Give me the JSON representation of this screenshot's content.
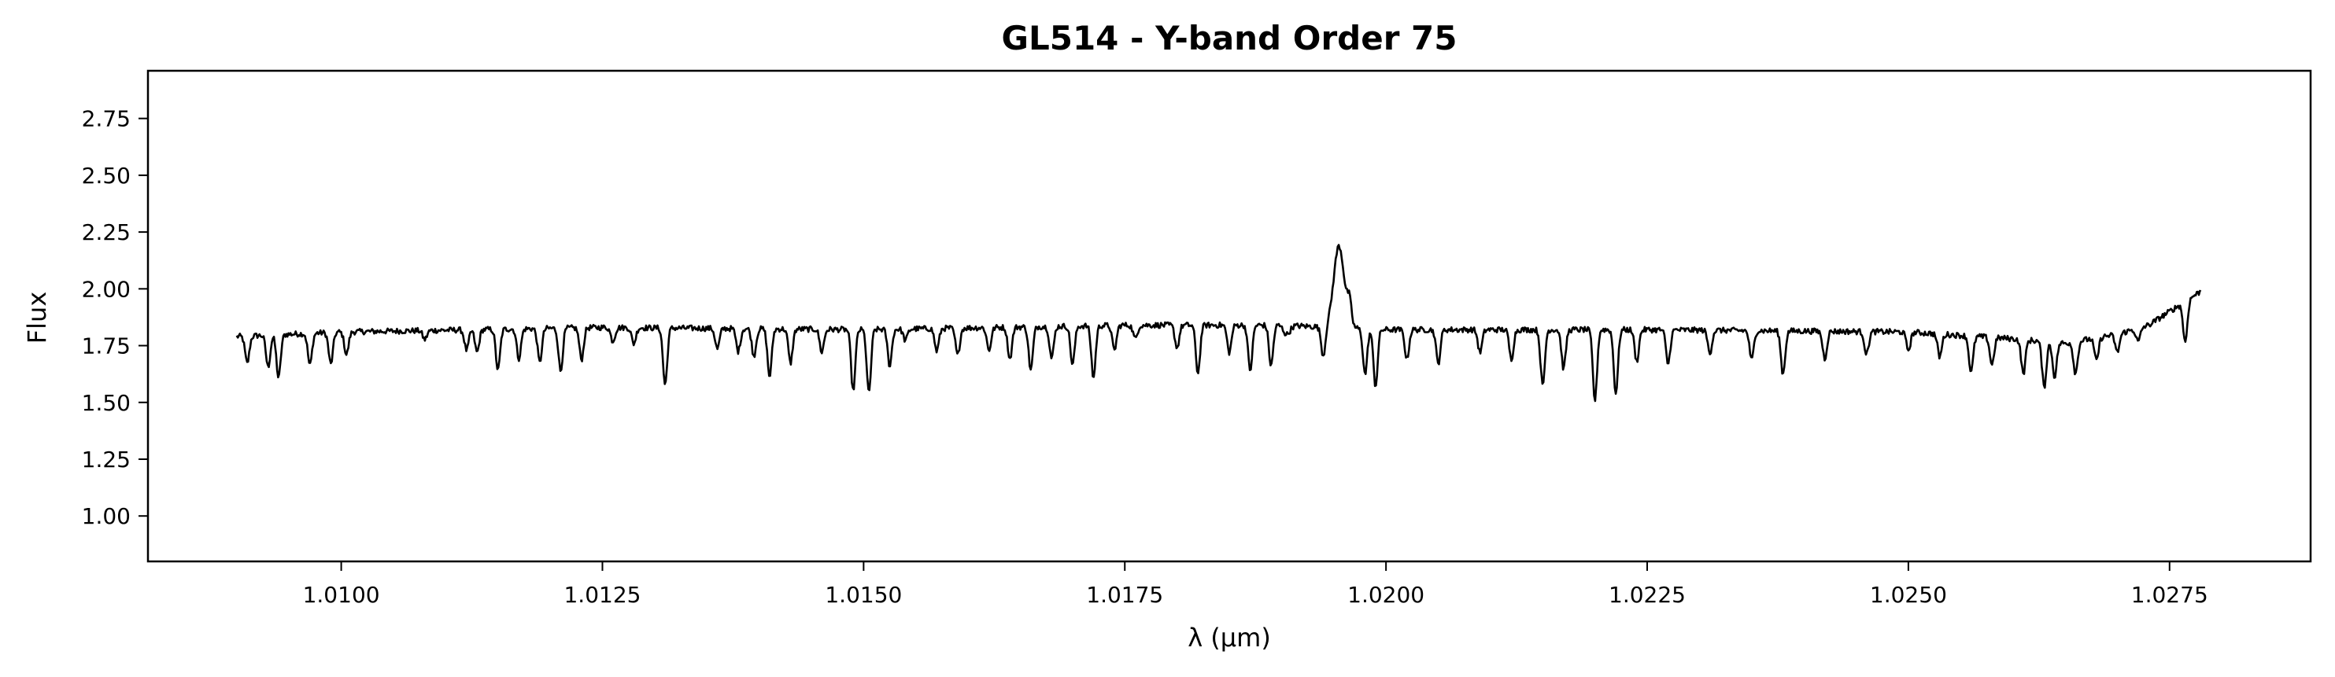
{
  "chart_data": {
    "type": "line",
    "title": "GL514 - Y-band Order 75",
    "xlabel": "λ (μm)",
    "ylabel": "Flux",
    "xlim": [
      1.00815,
      1.02885
    ],
    "ylim": [
      0.8,
      2.96
    ],
    "x_ticks": [
      1.01,
      1.0125,
      1.015,
      1.0175,
      1.02,
      1.0225,
      1.025,
      1.0275
    ],
    "x_tick_labels": [
      "1.0100",
      "1.0125",
      "1.0150",
      "1.0175",
      "1.0200",
      "1.0225",
      "1.0250",
      "1.0275"
    ],
    "y_ticks": [
      1.0,
      1.25,
      1.5,
      1.75,
      2.0,
      2.25,
      2.5,
      2.75
    ],
    "y_tick_labels": [
      "1.00",
      "1.25",
      "1.50",
      "1.75",
      "2.00",
      "2.25",
      "2.50",
      "2.75"
    ],
    "grid": false,
    "legend": "none",
    "series": [
      {
        "color": "#000000",
        "continuum": [
          [
            1.009,
            1.79
          ],
          [
            1.01,
            1.81
          ],
          [
            1.0125,
            1.83
          ],
          [
            1.015,
            1.82
          ],
          [
            1.0175,
            1.84
          ],
          [
            1.019,
            1.84
          ],
          [
            1.02,
            1.82
          ],
          [
            1.0225,
            1.82
          ],
          [
            1.025,
            1.81
          ],
          [
            1.026,
            1.78
          ],
          [
            1.0265,
            1.76
          ],
          [
            1.027,
            1.8
          ],
          [
            1.0273,
            1.84
          ],
          [
            1.0275,
            1.9
          ],
          [
            1.0278,
            1.99
          ]
        ],
        "features": [
          [
            1.01905,
            -0.04,
            3e-05
          ],
          [
            1.01955,
            0.36,
            5e-05
          ],
          [
            1.01965,
            0.1,
            2e-05
          ],
          [
            1.0091,
            -0.12,
            2e-05
          ],
          [
            1.0093,
            -0.14,
            2e-05
          ],
          [
            1.0094,
            -0.19,
            2e-05
          ],
          [
            1.0097,
            -0.14,
            2e-05
          ],
          [
            1.0099,
            -0.14,
            2e-05
          ],
          [
            1.01005,
            -0.1,
            2e-05
          ],
          [
            1.0108,
            -0.04,
            2e-05
          ],
          [
            1.0112,
            -0.09,
            2e-05
          ],
          [
            1.0113,
            -0.1,
            2e-05
          ],
          [
            1.0115,
            -0.18,
            2e-05
          ],
          [
            1.0117,
            -0.13,
            2e-05
          ],
          [
            1.0119,
            -0.15,
            2e-05
          ],
          [
            1.0121,
            -0.19,
            2e-05
          ],
          [
            1.0123,
            -0.14,
            2e-05
          ],
          [
            1.0126,
            -0.06,
            2e-05
          ],
          [
            1.0128,
            -0.07,
            2e-05
          ],
          [
            1.0131,
            -0.25,
            2e-05
          ],
          [
            1.0136,
            -0.09,
            2e-05
          ],
          [
            1.0138,
            -0.1,
            2e-05
          ],
          [
            1.01395,
            -0.12,
            2e-05
          ],
          [
            1.0141,
            -0.21,
            2e-05
          ],
          [
            1.0143,
            -0.15,
            2e-05
          ],
          [
            1.0146,
            -0.1,
            2e-05
          ],
          [
            1.0149,
            -0.27,
            2e-05
          ],
          [
            1.01505,
            -0.28,
            2e-05
          ],
          [
            1.01525,
            -0.16,
            2e-05
          ],
          [
            1.0154,
            -0.05,
            2e-05
          ],
          [
            1.0157,
            -0.1,
            2e-05
          ],
          [
            1.0159,
            -0.12,
            2e-05
          ],
          [
            1.0162,
            -0.1,
            2e-05
          ],
          [
            1.0164,
            -0.14,
            2e-05
          ],
          [
            1.0166,
            -0.19,
            2e-05
          ],
          [
            1.0168,
            -0.14,
            2e-05
          ],
          [
            1.017,
            -0.17,
            2e-05
          ],
          [
            1.0172,
            -0.23,
            2e-05
          ],
          [
            1.0174,
            -0.11,
            2e-05
          ],
          [
            1.0176,
            -0.06,
            2e-05
          ],
          [
            1.018,
            -0.1,
            2e-05
          ],
          [
            1.0182,
            -0.21,
            2e-05
          ],
          [
            1.0185,
            -0.12,
            2e-05
          ],
          [
            1.0187,
            -0.2,
            2e-05
          ],
          [
            1.0189,
            -0.18,
            2e-05
          ],
          [
            1.0194,
            -0.13,
            2e-05
          ],
          [
            1.0198,
            -0.2,
            2e-05
          ],
          [
            1.0199,
            -0.25,
            2e-05
          ],
          [
            1.0202,
            -0.13,
            2e-05
          ],
          [
            1.0205,
            -0.15,
            2e-05
          ],
          [
            1.0209,
            -0.1,
            2e-05
          ],
          [
            1.0212,
            -0.13,
            2e-05
          ],
          [
            1.0215,
            -0.25,
            2e-05
          ],
          [
            1.0217,
            -0.17,
            2e-05
          ],
          [
            1.022,
            -0.31,
            2e-05
          ],
          [
            1.0222,
            -0.28,
            2e-05
          ],
          [
            1.0224,
            -0.14,
            2e-05
          ],
          [
            1.0227,
            -0.15,
            2e-05
          ],
          [
            1.0231,
            -0.1,
            2e-05
          ],
          [
            1.0235,
            -0.13,
            2e-05
          ],
          [
            1.0238,
            -0.19,
            2e-05
          ],
          [
            1.0242,
            -0.12,
            2e-05
          ],
          [
            1.0246,
            -0.1,
            2e-05
          ],
          [
            1.025,
            -0.08,
            2e-05
          ],
          [
            1.0253,
            -0.1,
            2e-05
          ],
          [
            1.0256,
            -0.16,
            2e-05
          ],
          [
            1.0258,
            -0.12,
            2e-05
          ],
          [
            1.0261,
            -0.15,
            2e-05
          ],
          [
            1.0263,
            -0.2,
            2e-05
          ],
          [
            1.0264,
            -0.15,
            2e-05
          ],
          [
            1.0266,
            -0.14,
            2e-05
          ],
          [
            1.0268,
            -0.1,
            2e-05
          ],
          [
            1.027,
            -0.08,
            2e-05
          ],
          [
            1.0272,
            -0.06,
            2e-05
          ],
          [
            1.02765,
            -0.18,
            2e-05
          ]
        ]
      }
    ]
  }
}
